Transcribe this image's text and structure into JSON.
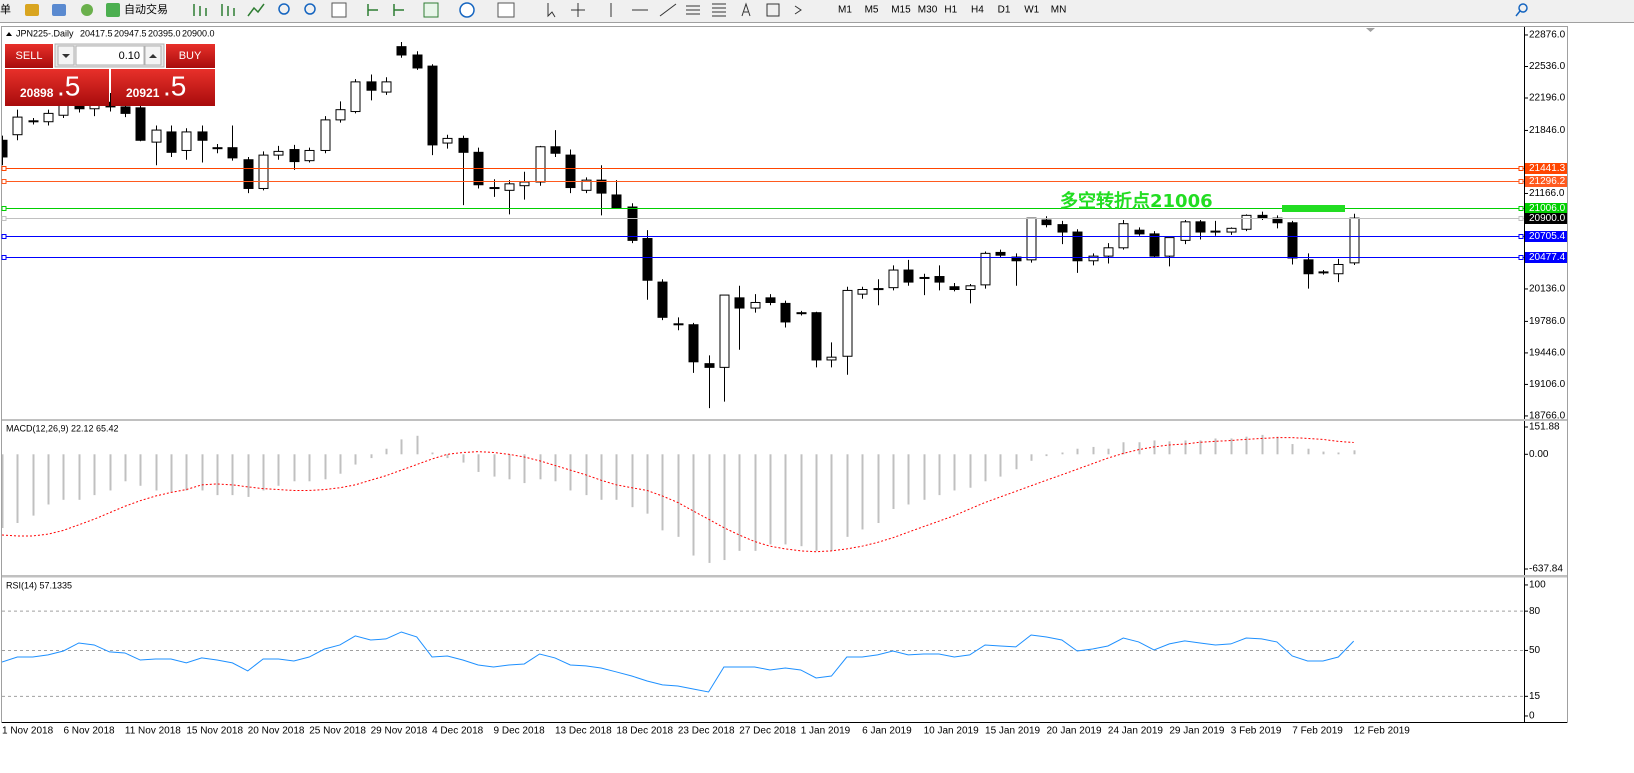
{
  "toolbar": {
    "menu": "单",
    "auto_trade": "自动交易",
    "periods": [
      "M1",
      "M5",
      "M15",
      "M30",
      "H1",
      "H4",
      "D1",
      "W1",
      "MN"
    ]
  },
  "chart_header": {
    "symbol": "JPN225-.Daily",
    "ohlc": [
      "20417.5",
      "20947.5",
      "20395.0",
      "20900.0"
    ]
  },
  "trade_panel": {
    "sell": "SELL",
    "lot": "0.10",
    "buy": "BUY",
    "sell_price": "20898",
    "sell_pip": ".5",
    "buy_price": "20921",
    "buy_pip": ".5"
  },
  "chart_data": [
    {
      "type": "candlestick",
      "categories": [
        "1 Nov 2018",
        null,
        null,
        null,
        "6 Nov 2018",
        null,
        null,
        null,
        "11 Nov 2018",
        null,
        null,
        null,
        "15 Nov 2018",
        null,
        null,
        null,
        "20 Nov 2018",
        null,
        null,
        null,
        "25 Nov 2018",
        null,
        null,
        null,
        "29 Nov 2018",
        null,
        null,
        null,
        "4 Dec 2018",
        null,
        null,
        null,
        "9 Dec 2018",
        null,
        null,
        null,
        "13 Dec 2018",
        null,
        null,
        null,
        "18 Dec 2018",
        null,
        null,
        null,
        "23 Dec 2018",
        null,
        null,
        null,
        "27 Dec 2018",
        null,
        null,
        null,
        "1 Jan 2019",
        null,
        null,
        null,
        "6 Jan 2019",
        null,
        null,
        null,
        "10 Jan 2019",
        null,
        null,
        null,
        "15 Jan 2019",
        null,
        null,
        null,
        "20 Jan 2019",
        null,
        null,
        null,
        "24 Jan 2019",
        null,
        null,
        null,
        "29 Jan 2019",
        null,
        null,
        null,
        "3 Feb 2019",
        null,
        null,
        null,
        "7 Feb 2019",
        null,
        null,
        null,
        "12 Feb 2019"
      ],
      "open": [
        21740,
        21800,
        21940,
        21940,
        22010,
        22120,
        22080,
        22150,
        22100,
        22090,
        21720,
        21830,
        21630,
        21830,
        21660,
        21660,
        21530,
        21220,
        21580,
        21640,
        21520,
        21630,
        21960,
        22050,
        22370,
        22260,
        22750,
        22660,
        22540,
        21710,
        21760,
        21610,
        21230,
        21200,
        21250,
        21290,
        21670,
        21580,
        21200,
        21310,
        21150,
        21020,
        20680,
        20210,
        19750,
        19750,
        19330,
        19290,
        20040,
        19930,
        20040,
        19980,
        19880,
        19880,
        19370,
        19410,
        20080,
        20130,
        20150,
        20340,
        20250,
        20270,
        20160,
        20130,
        20180,
        20530,
        20480,
        20450,
        20880,
        20830,
        20750,
        20440,
        20490,
        20580,
        20770,
        20730,
        20490,
        20660,
        20860,
        20750,
        20750,
        20780,
        20930,
        20900,
        20850,
        20450,
        20320,
        20300,
        20417.5
      ],
      "high": [
        21790,
        22070,
        21980,
        22070,
        22170,
        22230,
        22200,
        22250,
        22180,
        22140,
        21900,
        21900,
        21870,
        21900,
        21700,
        21900,
        21560,
        21620,
        21680,
        21690,
        21660,
        22000,
        22160,
        22400,
        22450,
        22420,
        22800,
        22700,
        22560,
        21800,
        21790,
        21660,
        21320,
        21310,
        21400,
        21680,
        21850,
        21640,
        21340,
        21470,
        21310,
        21060,
        20770,
        20240,
        19830,
        19770,
        19420,
        20070,
        20170,
        20080,
        20080,
        20010,
        19900,
        19890,
        19560,
        20160,
        20160,
        20240,
        20390,
        20450,
        20300,
        20390,
        20200,
        20190,
        20540,
        20560,
        20520,
        20900,
        20920,
        20870,
        20780,
        20520,
        20630,
        20880,
        20800,
        20760,
        20690,
        20880,
        20880,
        20870,
        20800,
        20940,
        20970,
        20930,
        20870,
        20520,
        20340,
        20460,
        20947.5
      ],
      "low": [
        21470,
        21740,
        21910,
        21900,
        21980,
        22040,
        22000,
        22050,
        21990,
        21730,
        21470,
        21560,
        21530,
        21500,
        21600,
        21520,
        21170,
        21200,
        21530,
        21420,
        21500,
        21600,
        21930,
        22030,
        22170,
        22230,
        22630,
        22500,
        21580,
        21650,
        21040,
        21220,
        21130,
        20940,
        21100,
        21250,
        21560,
        21170,
        21170,
        20930,
        21000,
        20630,
        20020,
        19800,
        19690,
        19230,
        18850,
        18920,
        19480,
        19880,
        19960,
        19720,
        19850,
        19290,
        19290,
        19210,
        20030,
        19960,
        20120,
        20170,
        20070,
        20120,
        20110,
        19980,
        20140,
        20480,
        20170,
        20420,
        20800,
        20620,
        20310,
        20390,
        20410,
        20560,
        20710,
        20480,
        20380,
        20620,
        20670,
        20710,
        20720,
        20760,
        20880,
        20790,
        20400,
        20140,
        20290,
        20210,
        20395
      ],
      "close": [
        21560,
        21990,
        21950,
        22030,
        22120,
        22080,
        22150,
        22100,
        22030,
        21740,
        21850,
        21610,
        21830,
        21740,
        21650,
        21550,
        21220,
        21580,
        21620,
        21510,
        21630,
        21960,
        22070,
        22370,
        22280,
        22370,
        22660,
        22520,
        21690,
        21760,
        21610,
        21260,
        21220,
        21270,
        21290,
        21670,
        21600,
        21230,
        21310,
        21170,
        21010,
        20660,
        20230,
        19830,
        19760,
        19350,
        19290,
        20070,
        19930,
        19990,
        19990,
        19780,
        19870,
        19370,
        19400,
        20120,
        20130,
        20140,
        20340,
        20210,
        20260,
        20210,
        20130,
        20170,
        20520,
        20500,
        20440,
        20900,
        20830,
        20750,
        20440,
        20490,
        20580,
        20840,
        20730,
        20490,
        20690,
        20860,
        20750,
        20760,
        20790,
        20930,
        20900,
        20850,
        20470,
        20300,
        20310,
        20400,
        20900
      ],
      "up_color": "#ffffff",
      "down_color": "#000000",
      "ylim": [
        18733,
        22962
      ],
      "yticks": [
        {
          "value": 22876,
          "label": "22876.0"
        },
        {
          "value": 22536,
          "label": "22536.0"
        },
        {
          "value": 22196,
          "label": "22196.0"
        },
        {
          "value": 21846,
          "label": "21846.0"
        },
        {
          "value": 21166,
          "label": "21166.0"
        },
        {
          "value": 20136,
          "label": "20136.0"
        },
        {
          "value": 19786,
          "label": "19786.0"
        },
        {
          "value": 19446,
          "label": "19446.0"
        },
        {
          "value": 19106,
          "label": "19106.0"
        },
        {
          "value": 18766,
          "label": "18766.0"
        }
      ],
      "hlines": [
        {
          "value": 21441.3,
          "color": "#ff4500"
        },
        {
          "value": 21296.2,
          "color": "#ff5a1e"
        },
        {
          "value": 21006,
          "label": "21006.0",
          "color": "#00d000"
        },
        {
          "value": 20900,
          "label": "20900.0",
          "color": "#000000",
          "line_color": "#c0c0c0"
        },
        {
          "value": 20705.4,
          "color": "#0000ff"
        },
        {
          "value": 20477.4,
          "color": "#0000ff"
        }
      ],
      "annotation": "多空转折点21006",
      "grid": false
    },
    {
      "type": "macd",
      "title": "MACD(12,26,9) 22.12 65.42",
      "histogram": [
        -410,
        -382,
        -341,
        -279,
        -253,
        -253,
        -227,
        -201,
        -150,
        -175,
        -201,
        -212,
        -201,
        -201,
        -227,
        -227,
        -237,
        -201,
        -175,
        -150,
        -150,
        -139,
        -108,
        -57,
        -21,
        31,
        83,
        103,
        10,
        -21,
        -46,
        -98,
        -124,
        -139,
        -160,
        -139,
        -150,
        -201,
        -227,
        -253,
        -253,
        -294,
        -330,
        -423,
        -459,
        -563,
        -604,
        -588,
        -537,
        -537,
        -501,
        -501,
        -511,
        -537,
        -537,
        -459,
        -418,
        -382,
        -304,
        -279,
        -253,
        -227,
        -201,
        -186,
        -150,
        -124,
        -83,
        -36,
        -10,
        10,
        31,
        41,
        31,
        67,
        67,
        77,
        72,
        77,
        77,
        88,
        88,
        98,
        108,
        98,
        57,
        31,
        15,
        10,
        22.12
      ],
      "signal": [
        -449,
        -454,
        -454,
        -444,
        -423,
        -392,
        -361,
        -325,
        -289,
        -258,
        -232,
        -212,
        -196,
        -170,
        -165,
        -170,
        -181,
        -191,
        -196,
        -201,
        -201,
        -196,
        -186,
        -170,
        -144,
        -119,
        -88,
        -57,
        -26,
        0,
        10,
        15,
        10,
        0,
        -15,
        -36,
        -62,
        -88,
        -114,
        -144,
        -170,
        -186,
        -201,
        -232,
        -268,
        -315,
        -361,
        -408,
        -449,
        -485,
        -511,
        -526,
        -537,
        -542,
        -537,
        -526,
        -511,
        -490,
        -464,
        -433,
        -402,
        -372,
        -341,
        -304,
        -268,
        -237,
        -206,
        -175,
        -144,
        -114,
        -83,
        -52,
        -21,
        5,
        26,
        41,
        52,
        57,
        67,
        72,
        77,
        83,
        88,
        93,
        93,
        88,
        83,
        72,
        65.42
      ],
      "histogram_color": "#c0c0c0",
      "signal_color": "#ff0000",
      "ylim": [
        -671.2,
        185.2
      ],
      "yticks": [
        151.88,
        {
          "value": 0,
          "label": "0.00"
        },
        -637.84
      ]
    },
    {
      "type": "line",
      "title": "RSI(14) 57.1335",
      "values": [
        41.2,
        45,
        45,
        46.6,
        49.6,
        55.7,
        54.2,
        48.9,
        48.1,
        42.7,
        43.5,
        43.5,
        40.5,
        44.3,
        42.7,
        40.5,
        34.4,
        43.5,
        43.5,
        42,
        45,
        51.1,
        54.2,
        61.1,
        58,
        58.8,
        64.1,
        60.3,
        45,
        45.8,
        42.7,
        38.9,
        37.4,
        38.9,
        39.7,
        47.3,
        44.3,
        38.9,
        38.2,
        36.6,
        33.6,
        30.5,
        26.7,
        23.7,
        22.9,
        20.6,
        18.3,
        37.4,
        37.4,
        37.4,
        35.1,
        36.6,
        35.1,
        29,
        30.5,
        45,
        45,
        46.6,
        49.6,
        46.6,
        47.3,
        47.3,
        45,
        46.6,
        54.2,
        53.4,
        52.7,
        61.8,
        60.3,
        58,
        49.6,
        51.1,
        53.4,
        59.5,
        56.5,
        50.4,
        55,
        57.3,
        55.7,
        54.2,
        55,
        59.5,
        58.8,
        56.5,
        45.8,
        42,
        42,
        45,
        57.1335
      ],
      "color": "#1e90ff",
      "ylim": [
        -4.6,
        105.3
      ],
      "yticks": [
        100,
        80,
        50,
        15,
        0
      ],
      "levels": [
        80,
        50,
        15
      ]
    }
  ]
}
